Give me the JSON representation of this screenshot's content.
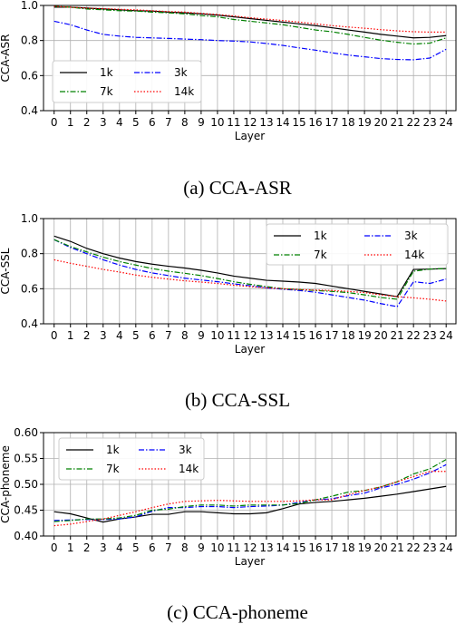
{
  "colors": {
    "1k": "#000000",
    "3k": "#0000ff",
    "7k": "#008000",
    "14k": "#ff0000",
    "grid": "#b0b0b0"
  },
  "chart_data": [
    {
      "type": "line",
      "caption": "(a) CCA-ASR",
      "xlabel": "Layer",
      "ylabel": "CCA-ASR",
      "x": [
        0,
        1,
        2,
        3,
        4,
        5,
        6,
        7,
        8,
        9,
        10,
        11,
        12,
        13,
        14,
        15,
        16,
        17,
        18,
        19,
        20,
        21,
        22,
        23,
        24
      ],
      "xticks": [
        "0",
        "1",
        "2",
        "3",
        "4",
        "5",
        "6",
        "7",
        "8",
        "9",
        "10",
        "11",
        "12",
        "13",
        "14",
        "15",
        "16",
        "17",
        "18",
        "19",
        "20",
        "21",
        "22",
        "23",
        "24"
      ],
      "ylim": [
        0.4,
        1.0
      ],
      "yticks": [
        "0.4",
        "0.6",
        "0.8",
        "1.0"
      ],
      "grid": true,
      "legend": "bottom-left",
      "series": [
        {
          "name": "1k",
          "style": "solid",
          "values": [
            0.99,
            0.99,
            0.985,
            0.98,
            0.975,
            0.97,
            0.968,
            0.962,
            0.958,
            0.952,
            0.945,
            0.935,
            0.925,
            0.915,
            0.905,
            0.895,
            0.885,
            0.873,
            0.86,
            0.848,
            0.835,
            0.825,
            0.815,
            0.818,
            0.828
          ]
        },
        {
          "name": "3k",
          "style": "dashdot",
          "values": [
            0.91,
            0.89,
            0.86,
            0.835,
            0.825,
            0.818,
            0.815,
            0.812,
            0.808,
            0.805,
            0.8,
            0.797,
            0.792,
            0.783,
            0.772,
            0.758,
            0.745,
            0.73,
            0.717,
            0.707,
            0.697,
            0.692,
            0.69,
            0.7,
            0.75
          ]
        },
        {
          "name": "7k",
          "style": "dashdot",
          "values": [
            0.995,
            0.99,
            0.98,
            0.975,
            0.97,
            0.968,
            0.962,
            0.958,
            0.952,
            0.942,
            0.935,
            0.92,
            0.91,
            0.9,
            0.89,
            0.875,
            0.86,
            0.85,
            0.835,
            0.818,
            0.802,
            0.79,
            0.78,
            0.785,
            0.815
          ]
        },
        {
          "name": "14k",
          "style": "dotted",
          "values": [
            0.995,
            0.99,
            0.985,
            0.982,
            0.978,
            0.975,
            0.97,
            0.965,
            0.962,
            0.955,
            0.948,
            0.94,
            0.93,
            0.922,
            0.914,
            0.905,
            0.895,
            0.885,
            0.877,
            0.87,
            0.862,
            0.855,
            0.85,
            0.848,
            0.848
          ]
        }
      ]
    },
    {
      "type": "line",
      "caption": "(b) CCA-SSL",
      "xlabel": "Layer",
      "ylabel": "CCA-SSL",
      "x": [
        0,
        1,
        2,
        3,
        4,
        5,
        6,
        7,
        8,
        9,
        10,
        11,
        12,
        13,
        14,
        15,
        16,
        17,
        18,
        19,
        20,
        21,
        22,
        23,
        24
      ],
      "xticks": [
        "0",
        "1",
        "2",
        "3",
        "4",
        "5",
        "6",
        "7",
        "8",
        "9",
        "10",
        "11",
        "12",
        "13",
        "14",
        "15",
        "16",
        "17",
        "18",
        "19",
        "20",
        "21",
        "22",
        "23",
        "24"
      ],
      "ylim": [
        0.4,
        1.0
      ],
      "yticks": [
        "0.4",
        "0.6",
        "0.8",
        "1.0"
      ],
      "grid": true,
      "legend": "top-right",
      "series": [
        {
          "name": "1k",
          "style": "solid",
          "values": [
            0.9,
            0.87,
            0.83,
            0.8,
            0.775,
            0.755,
            0.74,
            0.728,
            0.718,
            0.705,
            0.69,
            0.672,
            0.66,
            0.648,
            0.643,
            0.638,
            0.63,
            0.615,
            0.6,
            0.585,
            0.57,
            0.555,
            0.71,
            0.712,
            0.715
          ]
        },
        {
          "name": "3k",
          "style": "dashdot",
          "values": [
            0.88,
            0.835,
            0.8,
            0.765,
            0.735,
            0.71,
            0.69,
            0.675,
            0.66,
            0.65,
            0.64,
            0.628,
            0.617,
            0.605,
            0.597,
            0.59,
            0.58,
            0.565,
            0.55,
            0.535,
            0.515,
            0.498,
            0.64,
            0.63,
            0.655
          ]
        },
        {
          "name": "7k",
          "style": "dashdot",
          "values": [
            0.88,
            0.84,
            0.81,
            0.78,
            0.755,
            0.735,
            0.715,
            0.7,
            0.688,
            0.675,
            0.658,
            0.64,
            0.625,
            0.612,
            0.6,
            0.595,
            0.59,
            0.585,
            0.578,
            0.565,
            0.55,
            0.54,
            0.7,
            0.712,
            0.715
          ]
        },
        {
          "name": "14k",
          "style": "dotted",
          "values": [
            0.765,
            0.745,
            0.728,
            0.71,
            0.695,
            0.678,
            0.665,
            0.655,
            0.645,
            0.638,
            0.63,
            0.62,
            0.612,
            0.605,
            0.6,
            0.595,
            0.592,
            0.59,
            0.585,
            0.578,
            0.565,
            0.555,
            0.548,
            0.54,
            0.53
          ]
        }
      ]
    },
    {
      "type": "line",
      "caption": "(c) CCA-phoneme",
      "xlabel": "Layer",
      "ylabel": "CCA-phoneme",
      "x": [
        0,
        1,
        2,
        3,
        4,
        5,
        6,
        7,
        8,
        9,
        10,
        11,
        12,
        13,
        14,
        15,
        16,
        17,
        18,
        19,
        20,
        21,
        22,
        23,
        24
      ],
      "xticks": [
        "0",
        "1",
        "2",
        "3",
        "4",
        "5",
        "6",
        "7",
        "8",
        "9",
        "10",
        "11",
        "12",
        "13",
        "14",
        "15",
        "16",
        "17",
        "18",
        "19",
        "20",
        "21",
        "22",
        "23",
        "24"
      ],
      "ylim": [
        0.4,
        0.6
      ],
      "yticks": [
        "0.40",
        "0.45",
        "0.50",
        "0.55",
        "0.60"
      ],
      "grid": true,
      "legend": "top-left",
      "series": [
        {
          "name": "1k",
          "style": "solid",
          "values": [
            0.447,
            0.443,
            0.435,
            0.427,
            0.433,
            0.437,
            0.442,
            0.442,
            0.447,
            0.447,
            0.445,
            0.443,
            0.443,
            0.445,
            0.453,
            0.462,
            0.465,
            0.467,
            0.47,
            0.473,
            0.477,
            0.481,
            0.486,
            0.491,
            0.496
          ]
        },
        {
          "name": "3k",
          "style": "dashdot",
          "values": [
            0.43,
            0.431,
            0.432,
            0.432,
            0.433,
            0.437,
            0.448,
            0.455,
            0.455,
            0.457,
            0.457,
            0.455,
            0.457,
            0.458,
            0.46,
            0.465,
            0.47,
            0.472,
            0.478,
            0.483,
            0.493,
            0.5,
            0.51,
            0.522,
            0.538
          ]
        },
        {
          "name": "7k",
          "style": "dashdot",
          "values": [
            0.428,
            0.43,
            0.433,
            0.433,
            0.435,
            0.44,
            0.45,
            0.452,
            0.457,
            0.46,
            0.46,
            0.458,
            0.46,
            0.46,
            0.46,
            0.463,
            0.47,
            0.477,
            0.485,
            0.488,
            0.495,
            0.505,
            0.52,
            0.53,
            0.548
          ]
        },
        {
          "name": "14k",
          "style": "dotted",
          "values": [
            0.42,
            0.423,
            0.428,
            0.433,
            0.44,
            0.447,
            0.455,
            0.462,
            0.467,
            0.468,
            0.469,
            0.468,
            0.467,
            0.467,
            0.467,
            0.468,
            0.47,
            0.47,
            0.48,
            0.488,
            0.495,
            0.505,
            0.515,
            0.525,
            0.525
          ]
        }
      ]
    }
  ]
}
